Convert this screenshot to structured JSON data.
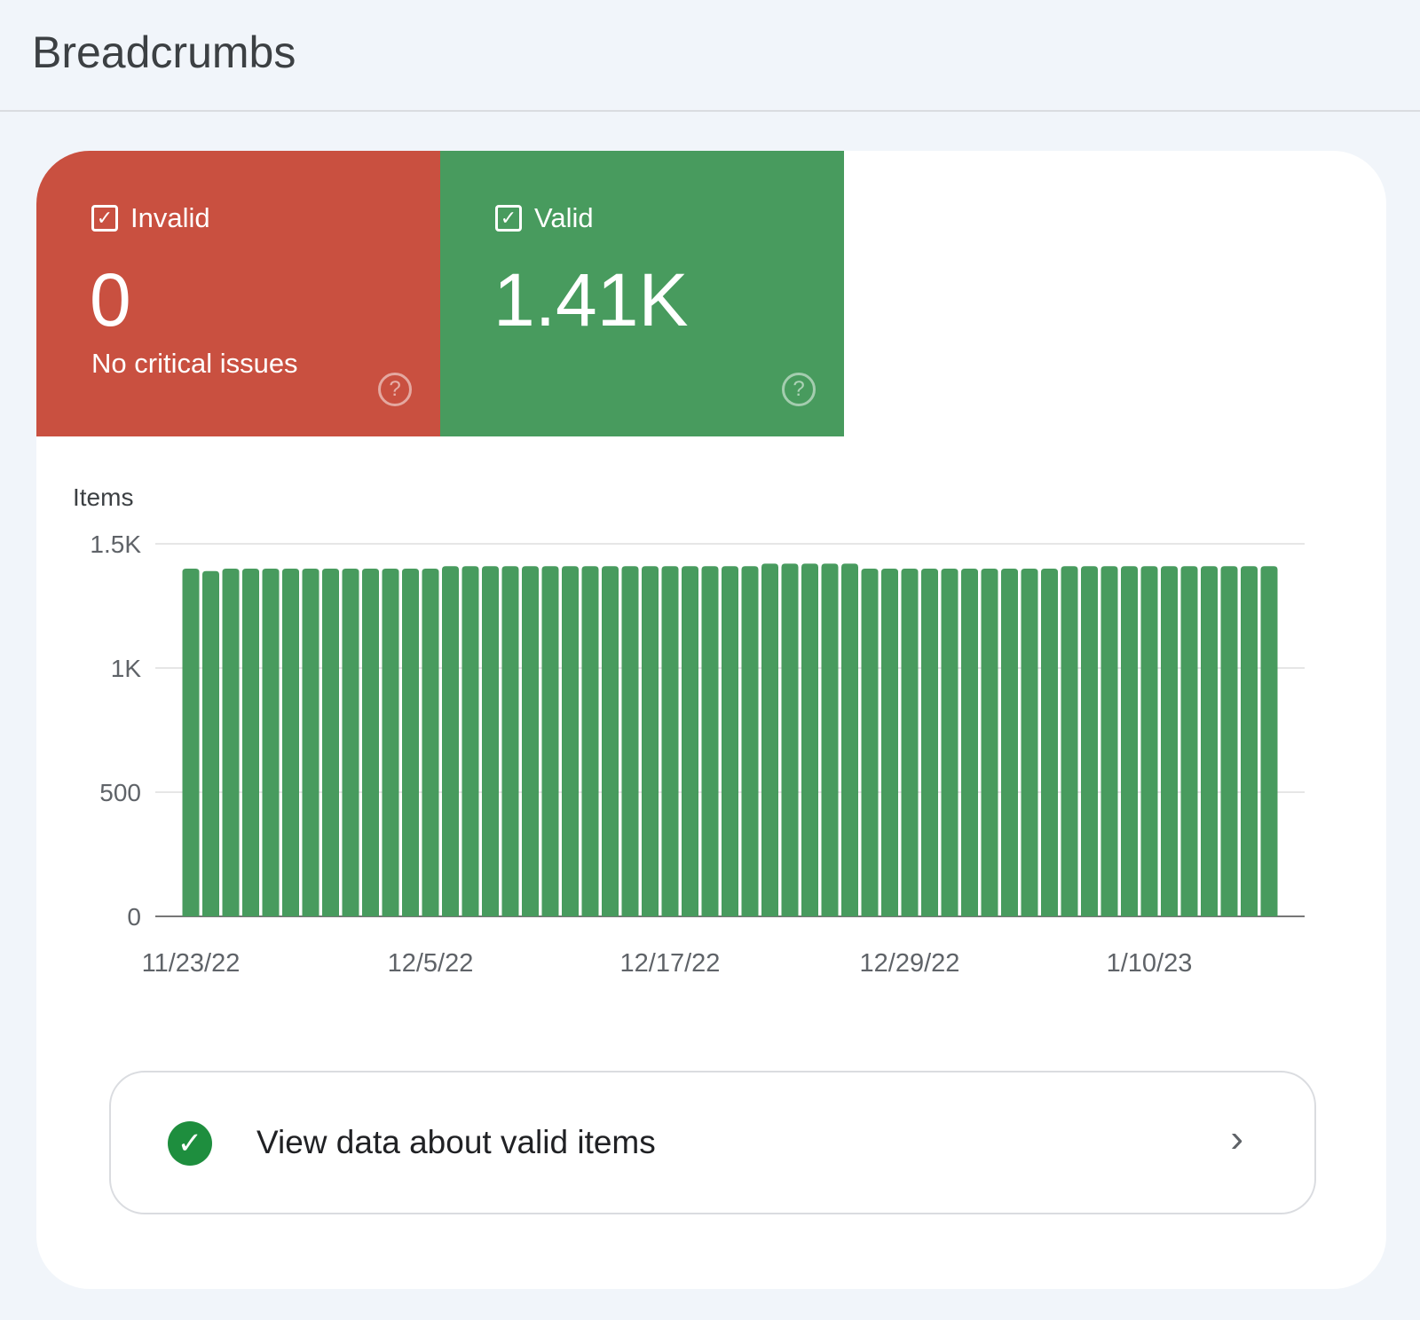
{
  "header": {
    "title": "Breadcrumbs"
  },
  "tiles": [
    {
      "label": "Invalid",
      "value": "0",
      "subtitle": "No critical issues",
      "color": "#c95040",
      "checked": true,
      "help_icon": "help-circle-icon"
    },
    {
      "label": "Valid",
      "value": "1.41K",
      "subtitle": "",
      "color": "#489b5e",
      "checked": true,
      "help_icon": "help-circle-icon"
    }
  ],
  "chart_data": {
    "type": "bar",
    "ylabel": "Items",
    "ylim": [
      0,
      1500
    ],
    "yticks": [
      0,
      500,
      1000,
      1500
    ],
    "ytick_labels": [
      "0",
      "500",
      "1K",
      "1.5K"
    ],
    "xtick_labels": [
      "11/23/22",
      "12/5/22",
      "12/17/22",
      "12/29/22",
      "1/10/23"
    ],
    "x_start": "11/23/22",
    "x_end": "1/16/23",
    "grid": true,
    "color": "#489b5e",
    "values": [
      1400,
      1390,
      1400,
      1400,
      1400,
      1400,
      1400,
      1400,
      1400,
      1400,
      1400,
      1400,
      1400,
      1410,
      1410,
      1410,
      1410,
      1410,
      1410,
      1410,
      1410,
      1410,
      1410,
      1410,
      1410,
      1410,
      1410,
      1410,
      1410,
      1420,
      1420,
      1420,
      1420,
      1420,
      1400,
      1400,
      1400,
      1400,
      1400,
      1400,
      1400,
      1400,
      1400,
      1400,
      1410,
      1410,
      1410,
      1410,
      1410,
      1410,
      1410,
      1410,
      1410,
      1410,
      1410
    ]
  },
  "action": {
    "label": "View data about valid items",
    "icon": "check-circle-icon",
    "chevron": "chevron-right-icon"
  }
}
